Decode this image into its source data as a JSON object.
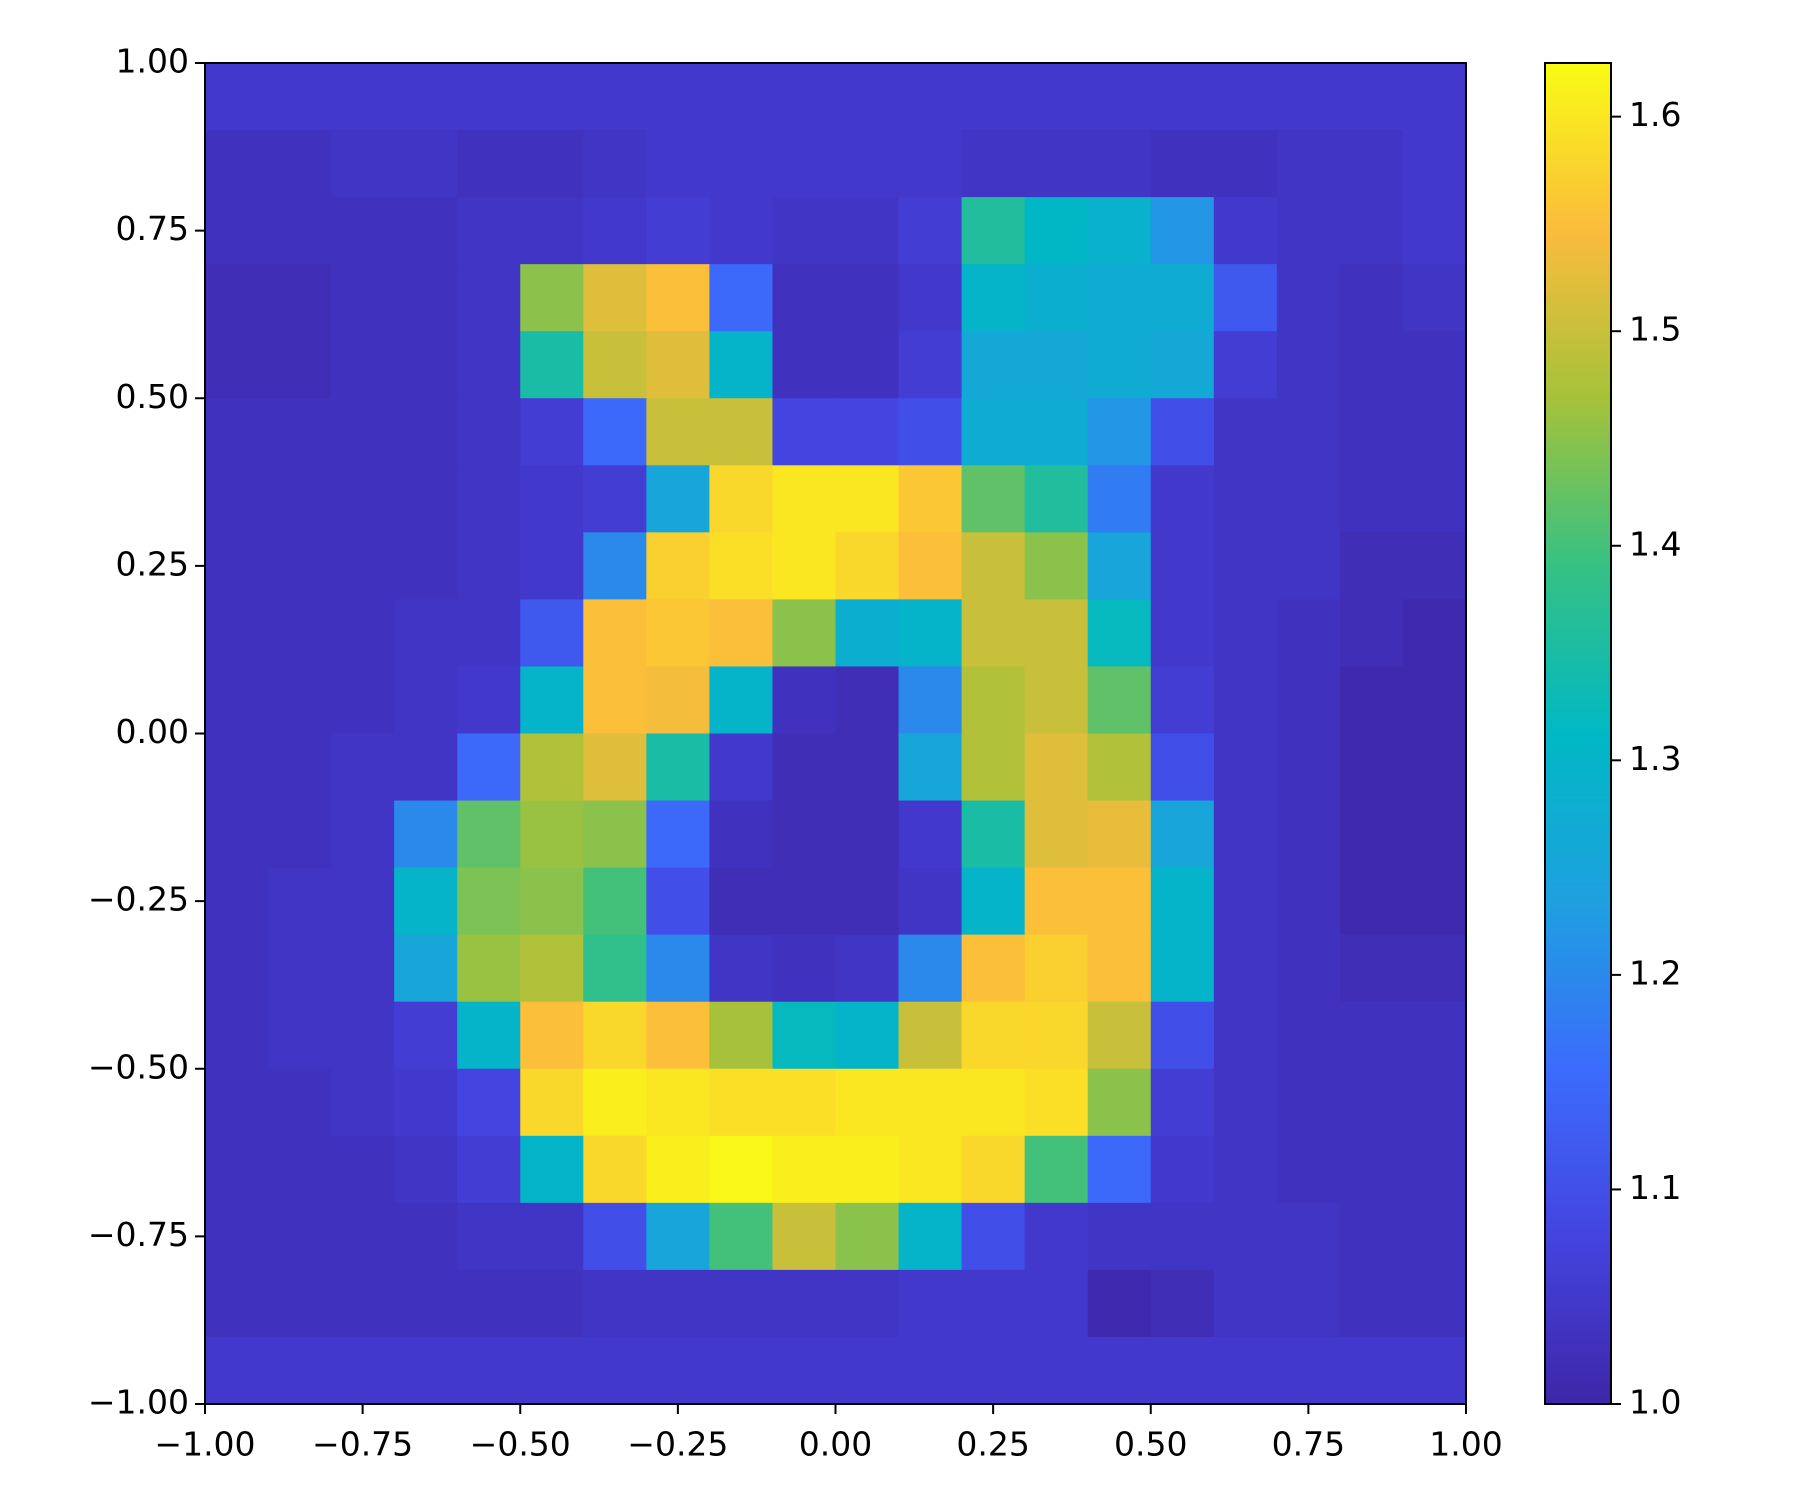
{
  "chart_data": {
    "type": "heatmap",
    "xlim": [
      -1,
      1
    ],
    "ylim": [
      -1,
      1
    ],
    "xticks": [
      {
        "value": -1,
        "label": "−1.00"
      },
      {
        "value": -0.75,
        "label": "−0.75"
      },
      {
        "value": -0.5,
        "label": "−0.50"
      },
      {
        "value": -0.25,
        "label": "−0.25"
      },
      {
        "value": 0,
        "label": "0.00"
      },
      0.25,
      {
        "value": 0.5,
        "label": "0.50"
      },
      0.75,
      {
        "value": 1,
        "label": "1.00"
      }
    ],
    "yticks": [
      {
        "value": -1,
        "label": "−1.00"
      },
      {
        "value": -0.75,
        "label": "−0.75"
      },
      {
        "value": -0.5,
        "label": "−0.50"
      },
      {
        "value": -0.25,
        "label": "−0.25"
      },
      {
        "value": 0,
        "label": "0.00"
      },
      0.25,
      {
        "value": 0.5,
        "label": "0.50"
      },
      0.75,
      {
        "value": 1,
        "label": "1.00"
      }
    ],
    "clim": [
      1.0,
      1.625
    ],
    "cticks": [
      {
        "value": 1,
        "label": "1.0"
      },
      1.1,
      1.2,
      1.3,
      1.4,
      1.5,
      1.6
    ],
    "colormap": [
      "#3e26a8",
      "#4444e0",
      "#3b6cfc",
      "#1ea0e0",
      "#00b8c4",
      "#36c183",
      "#a6c23a",
      "#fbbc3c",
      "#f9fb15"
    ],
    "z": [
      [
        1.05,
        1.05,
        1.05,
        1.05,
        1.05,
        1.05,
        1.05,
        1.05,
        1.05,
        1.05,
        1.05,
        1.05,
        1.05,
        1.05,
        1.05,
        1.05,
        1.05,
        1.05,
        1.05,
        1.05
      ],
      [
        1.03,
        1.03,
        1.04,
        1.04,
        1.03,
        1.03,
        1.04,
        1.05,
        1.05,
        1.05,
        1.05,
        1.05,
        1.04,
        1.04,
        1.04,
        1.03,
        1.03,
        1.04,
        1.04,
        1.05
      ],
      [
        1.03,
        1.03,
        1.03,
        1.03,
        1.04,
        1.04,
        1.05,
        1.06,
        1.05,
        1.04,
        1.04,
        1.06,
        1.36,
        1.31,
        1.29,
        1.22,
        1.05,
        1.04,
        1.04,
        1.05
      ],
      [
        1.02,
        1.02,
        1.03,
        1.03,
        1.04,
        1.45,
        1.52,
        1.55,
        1.15,
        1.03,
        1.03,
        1.05,
        1.3,
        1.28,
        1.27,
        1.27,
        1.12,
        1.04,
        1.03,
        1.04
      ],
      [
        1.02,
        1.02,
        1.03,
        1.03,
        1.04,
        1.35,
        1.5,
        1.52,
        1.3,
        1.03,
        1.03,
        1.06,
        1.26,
        1.26,
        1.27,
        1.26,
        1.06,
        1.04,
        1.03,
        1.03
      ],
      [
        1.03,
        1.03,
        1.03,
        1.03,
        1.04,
        1.06,
        1.15,
        1.5,
        1.5,
        1.08,
        1.08,
        1.1,
        1.27,
        1.27,
        1.22,
        1.1,
        1.04,
        1.04,
        1.03,
        1.03
      ],
      [
        1.03,
        1.03,
        1.03,
        1.03,
        1.04,
        1.05,
        1.06,
        1.25,
        1.58,
        1.6,
        1.6,
        1.56,
        1.42,
        1.36,
        1.18,
        1.05,
        1.04,
        1.04,
        1.03,
        1.03
      ],
      [
        1.03,
        1.03,
        1.03,
        1.03,
        1.04,
        1.05,
        1.2,
        1.57,
        1.59,
        1.6,
        1.58,
        1.55,
        1.5,
        1.45,
        1.25,
        1.05,
        1.04,
        1.04,
        1.02,
        1.02
      ],
      [
        1.03,
        1.03,
        1.03,
        1.04,
        1.04,
        1.12,
        1.55,
        1.56,
        1.55,
        1.45,
        1.28,
        1.3,
        1.5,
        1.5,
        1.32,
        1.05,
        1.04,
        1.03,
        1.02,
        1.01
      ],
      [
        1.03,
        1.03,
        1.03,
        1.04,
        1.05,
        1.3,
        1.55,
        1.54,
        1.3,
        1.03,
        1.02,
        1.2,
        1.48,
        1.5,
        1.42,
        1.06,
        1.04,
        1.03,
        1.01,
        1.01
      ],
      [
        1.03,
        1.03,
        1.04,
        1.04,
        1.15,
        1.48,
        1.52,
        1.35,
        1.05,
        1.02,
        1.02,
        1.25,
        1.48,
        1.52,
        1.48,
        1.1,
        1.04,
        1.03,
        1.01,
        1.01
      ],
      [
        1.03,
        1.03,
        1.04,
        1.2,
        1.42,
        1.46,
        1.45,
        1.15,
        1.03,
        1.02,
        1.02,
        1.05,
        1.35,
        1.52,
        1.53,
        1.25,
        1.04,
        1.03,
        1.01,
        1.01
      ],
      [
        1.03,
        1.04,
        1.04,
        1.3,
        1.44,
        1.45,
        1.4,
        1.1,
        1.02,
        1.02,
        1.02,
        1.04,
        1.3,
        1.55,
        1.55,
        1.3,
        1.04,
        1.03,
        1.01,
        1.01
      ],
      [
        1.03,
        1.04,
        1.04,
        1.25,
        1.46,
        1.48,
        1.38,
        1.2,
        1.04,
        1.03,
        1.04,
        1.2,
        1.55,
        1.57,
        1.55,
        1.3,
        1.04,
        1.03,
        1.02,
        1.02
      ],
      [
        1.03,
        1.04,
        1.04,
        1.06,
        1.3,
        1.55,
        1.58,
        1.55,
        1.47,
        1.32,
        1.3,
        1.5,
        1.58,
        1.58,
        1.5,
        1.1,
        1.04,
        1.03,
        1.03,
        1.03
      ],
      [
        1.03,
        1.03,
        1.04,
        1.05,
        1.08,
        1.58,
        1.61,
        1.6,
        1.59,
        1.59,
        1.6,
        1.6,
        1.6,
        1.59,
        1.45,
        1.06,
        1.04,
        1.03,
        1.03,
        1.03
      ],
      [
        1.03,
        1.03,
        1.03,
        1.04,
        1.06,
        1.3,
        1.58,
        1.61,
        1.62,
        1.61,
        1.61,
        1.6,
        1.58,
        1.4,
        1.15,
        1.05,
        1.04,
        1.03,
        1.03,
        1.03
      ],
      [
        1.03,
        1.03,
        1.03,
        1.03,
        1.04,
        1.04,
        1.1,
        1.25,
        1.4,
        1.5,
        1.45,
        1.3,
        1.1,
        1.05,
        1.04,
        1.04,
        1.04,
        1.04,
        1.03,
        1.03
      ],
      [
        1.03,
        1.03,
        1.03,
        1.03,
        1.03,
        1.03,
        1.04,
        1.04,
        1.04,
        1.04,
        1.04,
        1.05,
        1.05,
        1.05,
        1.01,
        1.02,
        1.04,
        1.04,
        1.03,
        1.03
      ],
      [
        1.05,
        1.05,
        1.05,
        1.05,
        1.05,
        1.05,
        1.05,
        1.05,
        1.05,
        1.05,
        1.05,
        1.05,
        1.05,
        1.05,
        1.05,
        1.05,
        1.05,
        1.05,
        1.05,
        1.05
      ]
    ]
  }
}
